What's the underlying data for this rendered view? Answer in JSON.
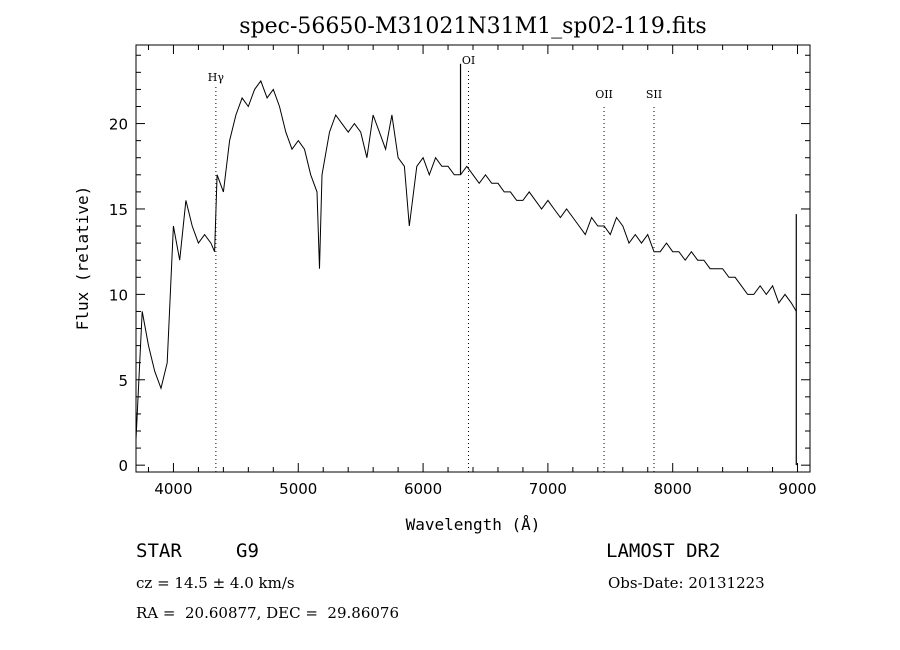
{
  "chart_data": {
    "type": "line",
    "title": "spec-56650-M31021N31M1_sp02-119.fits",
    "xlabel": "Wavelength (Å)",
    "ylabel": "Flux (relative)",
    "xlim": [
      3700,
      9100
    ],
    "ylim": [
      -0.4,
      24.6
    ],
    "x_ticks": [
      4000,
      5000,
      6000,
      7000,
      8000,
      9000
    ],
    "y_ticks": [
      0,
      5,
      10,
      15,
      20
    ],
    "line_color": "#000000",
    "x": [
      3700,
      3750,
      3800,
      3850,
      3900,
      3950,
      4000,
      4050,
      4100,
      4150,
      4200,
      4250,
      4300,
      4330,
      4350,
      4400,
      4450,
      4500,
      4550,
      4600,
      4650,
      4700,
      4750,
      4800,
      4850,
      4900,
      4950,
      5000,
      5050,
      5100,
      5150,
      5170,
      5190,
      5250,
      5300,
      5350,
      5400,
      5450,
      5500,
      5550,
      5600,
      5650,
      5700,
      5750,
      5800,
      5850,
      5890,
      5950,
      6000,
      6050,
      6100,
      6150,
      6200,
      6250,
      6300,
      6350,
      6400,
      6450,
      6500,
      6550,
      6600,
      6650,
      6700,
      6750,
      6800,
      6850,
      6900,
      6950,
      7000,
      7050,
      7100,
      7150,
      7200,
      7250,
      7300,
      7350,
      7400,
      7450,
      7500,
      7550,
      7600,
      7650,
      7700,
      7750,
      7800,
      7850,
      7900,
      7950,
      8000,
      8050,
      8100,
      8150,
      8200,
      8250,
      8300,
      8350,
      8400,
      8450,
      8500,
      8550,
      8600,
      8650,
      8700,
      8750,
      8800,
      8850,
      8900,
      8950,
      8990
    ],
    "y": [
      1.5,
      9.0,
      7.0,
      5.5,
      4.5,
      6.0,
      14.0,
      12.0,
      15.5,
      14.0,
      13.0,
      13.5,
      13.0,
      12.5,
      17.0,
      16.0,
      19.0,
      20.5,
      21.5,
      21.0,
      22.0,
      22.5,
      21.5,
      22.0,
      21.0,
      19.5,
      18.5,
      19.0,
      18.5,
      17.0,
      16.0,
      11.5,
      17.0,
      19.5,
      20.5,
      20.0,
      19.5,
      20.0,
      19.5,
      18.0,
      20.5,
      19.5,
      18.5,
      20.5,
      18.0,
      17.5,
      14.0,
      17.5,
      18.0,
      17.0,
      18.0,
      17.5,
      17.5,
      17.0,
      17.0,
      17.5,
      17.0,
      16.5,
      17.0,
      16.5,
      16.5,
      16.0,
      16.0,
      15.5,
      15.5,
      16.0,
      15.5,
      15.0,
      15.5,
      15.0,
      14.5,
      15.0,
      14.5,
      14.0,
      13.5,
      14.5,
      14.0,
      14.0,
      13.5,
      14.5,
      14.0,
      13.0,
      13.5,
      13.0,
      13.5,
      12.5,
      12.5,
      13.0,
      12.5,
      12.5,
      12.0,
      12.5,
      12.0,
      12.0,
      11.5,
      11.5,
      11.5,
      11.0,
      11.0,
      10.5,
      10.0,
      10.0,
      10.5,
      10.0,
      10.5,
      9.5,
      10.0,
      9.5,
      9.0
    ],
    "spikes": [
      {
        "x": 6300,
        "y": 23.5,
        "base": 17.0
      },
      {
        "x": 8990,
        "y": 14.7,
        "base": 0.0
      }
    ],
    "lines": [
      {
        "label": "Hγ",
        "x": 4340,
        "label_y": 22.5
      },
      {
        "label": "OI",
        "x": 6364,
        "label_y": 23.5
      },
      {
        "label": "OII",
        "x": 7450,
        "label_y": 21.5
      },
      {
        "label": "SII",
        "x": 7850,
        "label_y": 21.5
      }
    ]
  },
  "info": {
    "class": "STAR",
    "subclass": "G9",
    "survey": "LAMOST DR2",
    "cz": "cz = 14.5 ± 4.0 km/s",
    "obs_date": "Obs-Date: 20131223",
    "coords": "RA =  20.60877, DEC =  29.86076"
  }
}
